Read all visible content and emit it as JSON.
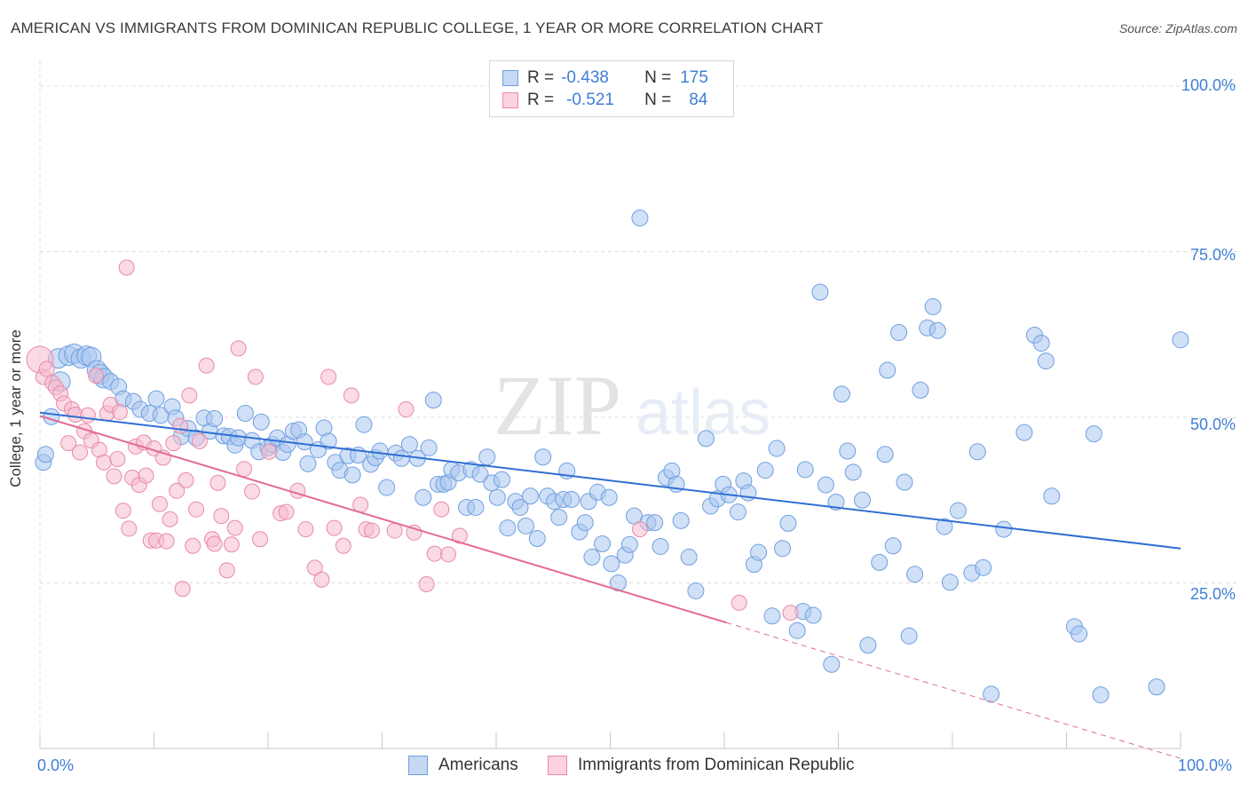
{
  "title": "AMERICAN VS IMMIGRANTS FROM DOMINICAN REPUBLIC COLLEGE, 1 YEAR OR MORE CORRELATION CHART",
  "source": "Source: ZipAtlas.com",
  "watermark": {
    "zip": "ZIP",
    "atlas": "atlas"
  },
  "legend": {
    "rows": [
      {
        "r_label": "R =",
        "r_value": "-0.438",
        "n_label": "N =",
        "n_value": "175"
      },
      {
        "r_label": "R =",
        "r_value": "-0.521",
        "n_label": "N =",
        "n_value": "84"
      }
    ]
  },
  "bottom_legend": {
    "americans": "Americans",
    "dominican": "Immigrants from Dominican Republic"
  },
  "axes": {
    "ylabel": "College, 1 year or more",
    "y_ticks": [
      "100.0%",
      "75.0%",
      "50.0%",
      "25.0%"
    ],
    "x_left": "0.0%",
    "x_right": "100.0%"
  },
  "colors": {
    "blue_fill": "#a9c6ef",
    "blue_stroke": "#6f9fe0",
    "blue_line": "#2f6fd2",
    "pink_fill": "#f6bccd",
    "pink_stroke": "#e98aa8",
    "pink_line": "#e46b93",
    "tick_text": "#3f7fd6",
    "grid": "#dcdcdc"
  },
  "chart_data": {
    "type": "scatter",
    "xlim": [
      0,
      100
    ],
    "ylim": [
      0,
      100
    ],
    "series": [
      {
        "name": "Americans",
        "trend": {
          "x0": 0,
          "y0": 50.7,
          "x1": 100,
          "y1": 30.2
        },
        "points": [
          [
            0.3,
            43.2
          ],
          [
            0.5,
            44.4
          ],
          [
            1.0,
            50.1
          ],
          [
            1.6,
            58.9
          ],
          [
            1.8,
            55.4
          ],
          [
            2.5,
            59.3
          ],
          [
            3.0,
            59.6
          ],
          [
            3.6,
            58.9
          ],
          [
            4.1,
            59.3
          ],
          [
            4.5,
            59.1
          ],
          [
            5.0,
            57.1
          ],
          [
            5.3,
            56.5
          ],
          [
            5.6,
            55.9
          ],
          [
            6.2,
            55.4
          ],
          [
            6.9,
            54.6
          ],
          [
            7.3,
            52.8
          ],
          [
            8.2,
            52.4
          ],
          [
            8.8,
            51.2
          ],
          [
            9.6,
            50.6
          ],
          [
            10.2,
            52.8
          ],
          [
            10.6,
            50.3
          ],
          [
            11.6,
            51.6
          ],
          [
            11.9,
            49.9
          ],
          [
            12.4,
            47.1
          ],
          [
            13.0,
            48.3
          ],
          [
            13.7,
            46.9
          ],
          [
            14.4,
            49.9
          ],
          [
            14.9,
            47.9
          ],
          [
            15.3,
            49.8
          ],
          [
            16.1,
            47.2
          ],
          [
            16.6,
            47.1
          ],
          [
            17.1,
            45.8
          ],
          [
            17.4,
            46.9
          ],
          [
            18.0,
            50.6
          ],
          [
            18.6,
            46.5
          ],
          [
            19.2,
            44.8
          ],
          [
            19.4,
            49.3
          ],
          [
            20.0,
            45.4
          ],
          [
            20.4,
            45.9
          ],
          [
            20.8,
            46.9
          ],
          [
            21.3,
            44.7
          ],
          [
            21.7,
            45.9
          ],
          [
            22.2,
            47.9
          ],
          [
            22.7,
            48.1
          ],
          [
            23.2,
            46.3
          ],
          [
            23.5,
            43.0
          ],
          [
            24.4,
            45.1
          ],
          [
            24.9,
            48.4
          ],
          [
            25.3,
            46.4
          ],
          [
            25.9,
            43.2
          ],
          [
            26.3,
            42.0
          ],
          [
            27.0,
            44.2
          ],
          [
            27.4,
            41.3
          ],
          [
            27.9,
            44.3
          ],
          [
            28.4,
            48.9
          ],
          [
            29.0,
            42.9
          ],
          [
            29.4,
            43.9
          ],
          [
            29.8,
            44.9
          ],
          [
            30.4,
            39.4
          ],
          [
            31.2,
            44.6
          ],
          [
            31.7,
            43.8
          ],
          [
            32.4,
            45.9
          ],
          [
            33.1,
            43.8
          ],
          [
            33.6,
            37.9
          ],
          [
            34.1,
            45.4
          ],
          [
            34.5,
            52.6
          ],
          [
            34.9,
            39.9
          ],
          [
            35.4,
            39.9
          ],
          [
            35.8,
            40.2
          ],
          [
            36.1,
            42.1
          ],
          [
            36.7,
            41.6
          ],
          [
            37.4,
            36.4
          ],
          [
            37.8,
            42.1
          ],
          [
            38.2,
            36.4
          ],
          [
            38.6,
            41.4
          ],
          [
            39.2,
            44.0
          ],
          [
            39.6,
            40.1
          ],
          [
            40.1,
            37.9
          ],
          [
            40.5,
            40.6
          ],
          [
            41.0,
            33.3
          ],
          [
            41.7,
            37.3
          ],
          [
            42.1,
            36.4
          ],
          [
            42.6,
            33.6
          ],
          [
            43.0,
            38.1
          ],
          [
            43.6,
            31.7
          ],
          [
            44.1,
            44.0
          ],
          [
            44.5,
            38.1
          ],
          [
            45.1,
            37.3
          ],
          [
            45.5,
            34.9
          ],
          [
            45.9,
            37.6
          ],
          [
            46.2,
            41.9
          ],
          [
            46.6,
            37.6
          ],
          [
            47.3,
            32.7
          ],
          [
            47.8,
            34.1
          ],
          [
            48.1,
            37.3
          ],
          [
            48.4,
            28.9
          ],
          [
            48.9,
            38.7
          ],
          [
            49.3,
            30.9
          ],
          [
            49.9,
            37.9
          ],
          [
            50.1,
            27.9
          ],
          [
            50.7,
            25.0
          ],
          [
            51.3,
            29.2
          ],
          [
            51.7,
            30.8
          ],
          [
            52.1,
            35.1
          ],
          [
            52.6,
            80.1
          ],
          [
            53.3,
            34.1
          ],
          [
            53.9,
            34.1
          ],
          [
            54.4,
            30.5
          ],
          [
            54.9,
            40.9
          ],
          [
            55.4,
            41.9
          ],
          [
            55.8,
            39.9
          ],
          [
            56.2,
            34.4
          ],
          [
            56.9,
            28.9
          ],
          [
            57.5,
            23.8
          ],
          [
            58.4,
            46.8
          ],
          [
            58.8,
            36.6
          ],
          [
            59.4,
            37.7
          ],
          [
            59.9,
            39.9
          ],
          [
            60.4,
            38.3
          ],
          [
            61.2,
            35.7
          ],
          [
            61.7,
            40.4
          ],
          [
            62.1,
            38.6
          ],
          [
            62.6,
            27.8
          ],
          [
            63.0,
            29.6
          ],
          [
            63.6,
            42.0
          ],
          [
            64.2,
            20.0
          ],
          [
            64.6,
            45.3
          ],
          [
            65.1,
            30.2
          ],
          [
            65.6,
            34.0
          ],
          [
            66.4,
            17.8
          ],
          [
            66.9,
            20.7
          ],
          [
            67.1,
            42.1
          ],
          [
            67.8,
            20.1
          ],
          [
            68.4,
            68.9
          ],
          [
            68.9,
            39.8
          ],
          [
            69.4,
            12.7
          ],
          [
            69.8,
            37.2
          ],
          [
            70.3,
            53.5
          ],
          [
            70.8,
            44.9
          ],
          [
            71.3,
            41.7
          ],
          [
            72.1,
            37.5
          ],
          [
            72.6,
            15.6
          ],
          [
            73.6,
            28.1
          ],
          [
            74.1,
            44.4
          ],
          [
            74.3,
            57.1
          ],
          [
            74.8,
            30.6
          ],
          [
            75.3,
            62.8
          ],
          [
            75.8,
            40.2
          ],
          [
            76.2,
            17.0
          ],
          [
            76.7,
            26.3
          ],
          [
            77.2,
            54.1
          ],
          [
            77.8,
            63.5
          ],
          [
            78.3,
            66.7
          ],
          [
            78.7,
            63.1
          ],
          [
            79.3,
            33.5
          ],
          [
            79.8,
            25.1
          ],
          [
            80.5,
            35.9
          ],
          [
            81.7,
            26.5
          ],
          [
            82.2,
            44.8
          ],
          [
            82.7,
            27.3
          ],
          [
            83.4,
            8.2
          ],
          [
            84.5,
            33.1
          ],
          [
            86.3,
            47.7
          ],
          [
            87.2,
            62.4
          ],
          [
            87.8,
            61.2
          ],
          [
            88.2,
            58.5
          ],
          [
            88.7,
            38.1
          ],
          [
            90.7,
            18.4
          ],
          [
            91.1,
            17.3
          ],
          [
            92.4,
            47.5
          ],
          [
            93.0,
            8.1
          ],
          [
            97.9,
            9.3
          ],
          [
            100.0,
            61.7
          ]
        ]
      },
      {
        "name": "Immigrants from Dominican Republic",
        "trend": {
          "x0": 0,
          "y0": 50.2,
          "x1": 60.2,
          "y1": 19.0
        },
        "trend_dashed": {
          "x0": 60.2,
          "y0": 19.0,
          "x1": 100,
          "y1": -1.5
        },
        "points": [
          [
            0.0,
            58.7
          ],
          [
            0.3,
            56.1
          ],
          [
            0.6,
            57.3
          ],
          [
            1.1,
            55.2
          ],
          [
            1.4,
            54.5
          ],
          [
            1.8,
            53.6
          ],
          [
            2.1,
            52.1
          ],
          [
            2.5,
            46.1
          ],
          [
            2.8,
            51.2
          ],
          [
            3.1,
            50.4
          ],
          [
            3.5,
            44.7
          ],
          [
            3.9,
            47.9
          ],
          [
            4.2,
            50.3
          ],
          [
            4.5,
            46.5
          ],
          [
            4.9,
            56.3
          ],
          [
            5.2,
            45.1
          ],
          [
            5.6,
            43.2
          ],
          [
            5.9,
            50.6
          ],
          [
            6.2,
            51.9
          ],
          [
            6.5,
            41.1
          ],
          [
            6.8,
            43.7
          ],
          [
            7.0,
            50.8
          ],
          [
            7.3,
            35.9
          ],
          [
            7.6,
            72.6
          ],
          [
            7.8,
            33.2
          ],
          [
            8.1,
            40.9
          ],
          [
            8.4,
            45.6
          ],
          [
            8.7,
            39.8
          ],
          [
            9.1,
            46.2
          ],
          [
            9.3,
            41.2
          ],
          [
            9.7,
            31.4
          ],
          [
            10.0,
            45.3
          ],
          [
            10.2,
            31.4
          ],
          [
            10.5,
            36.9
          ],
          [
            10.8,
            43.9
          ],
          [
            11.1,
            31.3
          ],
          [
            11.4,
            34.6
          ],
          [
            11.7,
            46.1
          ],
          [
            12.0,
            38.9
          ],
          [
            12.3,
            48.7
          ],
          [
            12.5,
            24.1
          ],
          [
            12.8,
            40.5
          ],
          [
            13.1,
            53.3
          ],
          [
            13.4,
            30.6
          ],
          [
            13.7,
            36.1
          ],
          [
            14.0,
            46.4
          ],
          [
            14.6,
            57.8
          ],
          [
            15.1,
            31.6
          ],
          [
            15.3,
            30.9
          ],
          [
            15.6,
            40.1
          ],
          [
            15.9,
            35.1
          ],
          [
            16.4,
            26.9
          ],
          [
            16.8,
            30.8
          ],
          [
            17.1,
            33.3
          ],
          [
            17.4,
            60.4
          ],
          [
            17.9,
            42.2
          ],
          [
            18.6,
            38.8
          ],
          [
            18.9,
            56.1
          ],
          [
            19.3,
            31.6
          ],
          [
            20.1,
            44.8
          ],
          [
            21.1,
            35.5
          ],
          [
            21.6,
            35.7
          ],
          [
            22.6,
            38.9
          ],
          [
            23.3,
            33.1
          ],
          [
            24.1,
            27.3
          ],
          [
            24.7,
            25.5
          ],
          [
            25.3,
            56.1
          ],
          [
            25.8,
            33.3
          ],
          [
            26.6,
            30.6
          ],
          [
            27.3,
            53.3
          ],
          [
            28.1,
            36.8
          ],
          [
            28.6,
            33.1
          ],
          [
            29.1,
            32.9
          ],
          [
            31.1,
            32.9
          ],
          [
            32.1,
            51.2
          ],
          [
            32.8,
            32.6
          ],
          [
            33.9,
            24.8
          ],
          [
            34.6,
            29.4
          ],
          [
            35.2,
            36.1
          ],
          [
            35.8,
            29.3
          ],
          [
            36.8,
            32.1
          ],
          [
            52.6,
            33.1
          ],
          [
            61.3,
            22.0
          ],
          [
            65.8,
            20.5
          ]
        ]
      }
    ]
  }
}
